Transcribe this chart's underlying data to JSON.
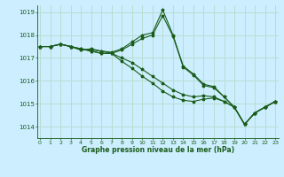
{
  "xlabel": "Graphe pression niveau de la mer (hPa)",
  "bg_color": "#cceeff",
  "grid_color": "#b8ddd0",
  "line_color": "#1a5c1a",
  "marker": "*",
  "ylim": [
    1013.5,
    1019.3
  ],
  "xlim": [
    -0.3,
    23.3
  ],
  "yticks": [
    1014,
    1015,
    1016,
    1017,
    1018,
    1019
  ],
  "xticks": [
    0,
    1,
    2,
    3,
    4,
    5,
    6,
    7,
    8,
    9,
    10,
    11,
    12,
    13,
    14,
    15,
    16,
    17,
    18,
    19,
    20,
    21,
    22,
    23
  ],
  "series": [
    [
      1017.5,
      1017.5,
      1017.6,
      1017.5,
      1017.35,
      1017.4,
      1017.3,
      1017.25,
      1017.4,
      1017.7,
      1018.0,
      1018.1,
      1019.1,
      1018.0,
      1016.65,
      1016.3,
      1015.85,
      1015.75,
      1015.3,
      1014.85,
      1014.1,
      1014.6,
      1014.85,
      1015.1
    ],
    [
      1017.5,
      1017.5,
      1017.6,
      1017.5,
      1017.4,
      1017.3,
      1017.2,
      1017.2,
      1017.0,
      1016.8,
      1016.5,
      1016.2,
      1015.9,
      1015.6,
      1015.4,
      1015.3,
      1015.35,
      1015.3,
      1015.1,
      1014.85,
      1014.1,
      1014.6,
      1014.85,
      1015.1
    ],
    [
      1017.5,
      1017.5,
      1017.6,
      1017.5,
      1017.4,
      1017.3,
      1017.2,
      1017.2,
      1016.85,
      1016.55,
      1016.2,
      1015.9,
      1015.55,
      1015.3,
      1015.15,
      1015.1,
      1015.2,
      1015.25,
      1015.1,
      1014.85,
      1014.1,
      1014.6,
      1014.85,
      1015.1
    ],
    [
      1017.5,
      1017.5,
      1017.6,
      1017.5,
      1017.35,
      1017.35,
      1017.3,
      1017.2,
      1017.35,
      1017.6,
      1017.85,
      1018.0,
      1018.85,
      1017.95,
      1016.6,
      1016.25,
      1015.8,
      1015.7,
      1015.3,
      1014.85,
      1014.1,
      1014.6,
      1014.85,
      1015.1
    ]
  ]
}
